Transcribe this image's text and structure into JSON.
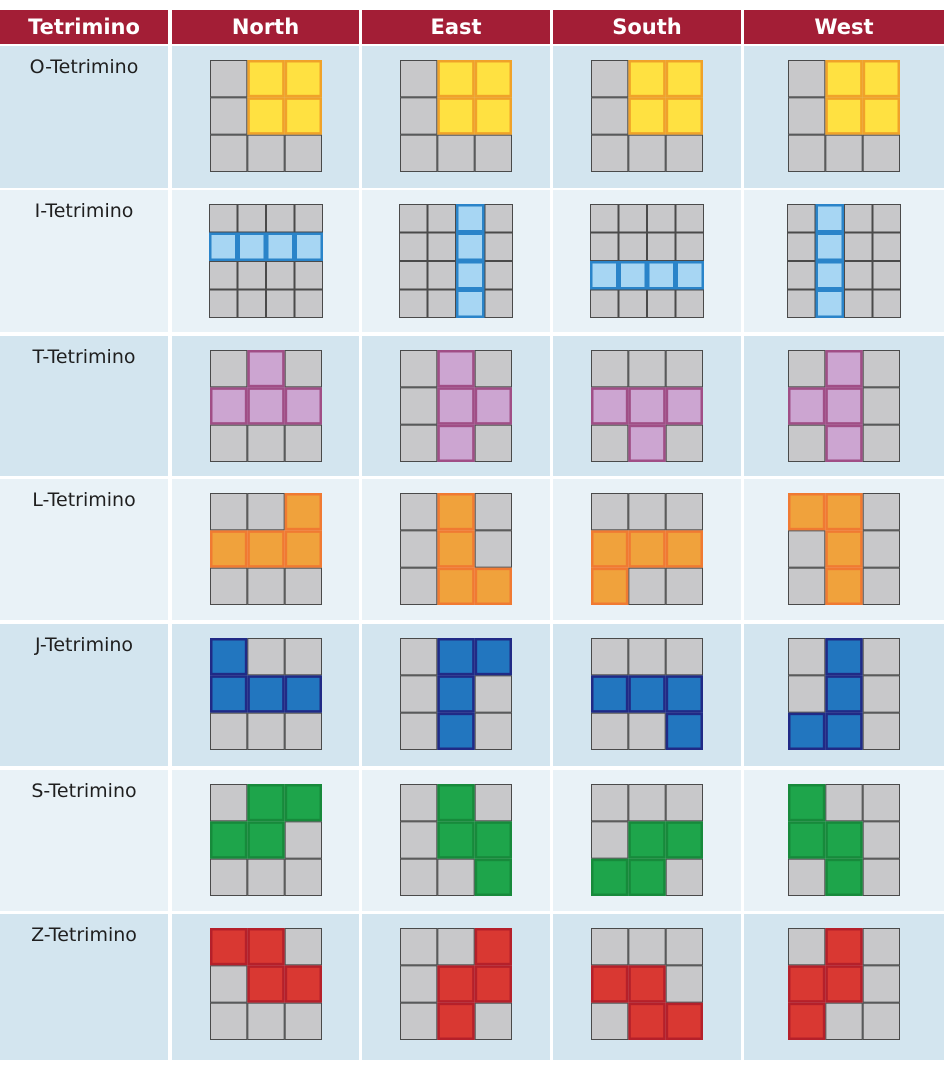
{
  "headers": [
    "Tetrimino",
    "North",
    "East",
    "South",
    "West"
  ],
  "colors": {
    "header_bg": "#a31e36",
    "header_text": "#ffffff",
    "row_shade_dark": "#d3e5ef",
    "row_shade_light": "#e9f2f7",
    "empty_fill": "#c8c8ca",
    "empty_stroke": "#4a4a4a"
  },
  "pieces": [
    {
      "name": "O-Tetrimino",
      "grid_size": 3,
      "fill": "#ffe141",
      "stroke": "#f0a229",
      "orientations": [
        [
          [
            0,
            1
          ],
          [
            0,
            2
          ],
          [
            1,
            1
          ],
          [
            1,
            2
          ]
        ],
        [
          [
            0,
            1
          ],
          [
            0,
            2
          ],
          [
            1,
            1
          ],
          [
            1,
            2
          ]
        ],
        [
          [
            0,
            1
          ],
          [
            0,
            2
          ],
          [
            1,
            1
          ],
          [
            1,
            2
          ]
        ],
        [
          [
            0,
            1
          ],
          [
            0,
            2
          ],
          [
            1,
            1
          ],
          [
            1,
            2
          ]
        ]
      ]
    },
    {
      "name": "I-Tetrimino",
      "grid_size": 4,
      "fill": "#a7d6f3",
      "stroke": "#2a84c9",
      "orientations": [
        [
          [
            1,
            0
          ],
          [
            1,
            1
          ],
          [
            1,
            2
          ],
          [
            1,
            3
          ]
        ],
        [
          [
            0,
            2
          ],
          [
            1,
            2
          ],
          [
            2,
            2
          ],
          [
            3,
            2
          ]
        ],
        [
          [
            2,
            0
          ],
          [
            2,
            1
          ],
          [
            2,
            2
          ],
          [
            2,
            3
          ]
        ],
        [
          [
            0,
            1
          ],
          [
            1,
            1
          ],
          [
            2,
            1
          ],
          [
            3,
            1
          ]
        ]
      ]
    },
    {
      "name": "T-Tetrimino",
      "grid_size": 3,
      "fill": "#cca5d1",
      "stroke": "#a04e86",
      "orientations": [
        [
          [
            0,
            1
          ],
          [
            1,
            0
          ],
          [
            1,
            1
          ],
          [
            1,
            2
          ]
        ],
        [
          [
            0,
            1
          ],
          [
            1,
            1
          ],
          [
            1,
            2
          ],
          [
            2,
            1
          ]
        ],
        [
          [
            1,
            0
          ],
          [
            1,
            1
          ],
          [
            1,
            2
          ],
          [
            2,
            1
          ]
        ],
        [
          [
            0,
            1
          ],
          [
            1,
            0
          ],
          [
            1,
            1
          ],
          [
            2,
            1
          ]
        ]
      ]
    },
    {
      "name": "L-Tetrimino",
      "grid_size": 3,
      "fill": "#f0a23c",
      "stroke": "#f07a32",
      "orientations": [
        [
          [
            0,
            2
          ],
          [
            1,
            0
          ],
          [
            1,
            1
          ],
          [
            1,
            2
          ]
        ],
        [
          [
            0,
            1
          ],
          [
            1,
            1
          ],
          [
            2,
            1
          ],
          [
            2,
            2
          ]
        ],
        [
          [
            1,
            0
          ],
          [
            1,
            1
          ],
          [
            1,
            2
          ],
          [
            2,
            0
          ]
        ],
        [
          [
            0,
            0
          ],
          [
            0,
            1
          ],
          [
            1,
            1
          ],
          [
            2,
            1
          ]
        ]
      ]
    },
    {
      "name": "J-Tetrimino",
      "grid_size": 3,
      "fill": "#2276bf",
      "stroke": "#202a86",
      "orientations": [
        [
          [
            0,
            0
          ],
          [
            1,
            0
          ],
          [
            1,
            1
          ],
          [
            1,
            2
          ]
        ],
        [
          [
            0,
            1
          ],
          [
            0,
            2
          ],
          [
            1,
            1
          ],
          [
            2,
            1
          ]
        ],
        [
          [
            1,
            0
          ],
          [
            1,
            1
          ],
          [
            1,
            2
          ],
          [
            2,
            2
          ]
        ],
        [
          [
            0,
            1
          ],
          [
            1,
            1
          ],
          [
            2,
            0
          ],
          [
            2,
            1
          ]
        ]
      ]
    },
    {
      "name": "S-Tetrimino",
      "grid_size": 3,
      "fill": "#1ea54b",
      "stroke": "#178a3b",
      "orientations": [
        [
          [
            0,
            1
          ],
          [
            0,
            2
          ],
          [
            1,
            0
          ],
          [
            1,
            1
          ]
        ],
        [
          [
            0,
            1
          ],
          [
            1,
            1
          ],
          [
            1,
            2
          ],
          [
            2,
            2
          ]
        ],
        [
          [
            1,
            1
          ],
          [
            1,
            2
          ],
          [
            2,
            0
          ],
          [
            2,
            1
          ]
        ],
        [
          [
            0,
            0
          ],
          [
            1,
            0
          ],
          [
            1,
            1
          ],
          [
            2,
            1
          ]
        ]
      ]
    },
    {
      "name": "Z-Tetrimino",
      "grid_size": 3,
      "fill": "#d93832",
      "stroke": "#b5202a",
      "orientations": [
        [
          [
            0,
            0
          ],
          [
            0,
            1
          ],
          [
            1,
            1
          ],
          [
            1,
            2
          ]
        ],
        [
          [
            0,
            2
          ],
          [
            1,
            1
          ],
          [
            1,
            2
          ],
          [
            2,
            1
          ]
        ],
        [
          [
            1,
            0
          ],
          [
            1,
            1
          ],
          [
            2,
            1
          ],
          [
            2,
            2
          ]
        ],
        [
          [
            0,
            1
          ],
          [
            1,
            0
          ],
          [
            1,
            1
          ],
          [
            2,
            0
          ]
        ]
      ]
    }
  ]
}
